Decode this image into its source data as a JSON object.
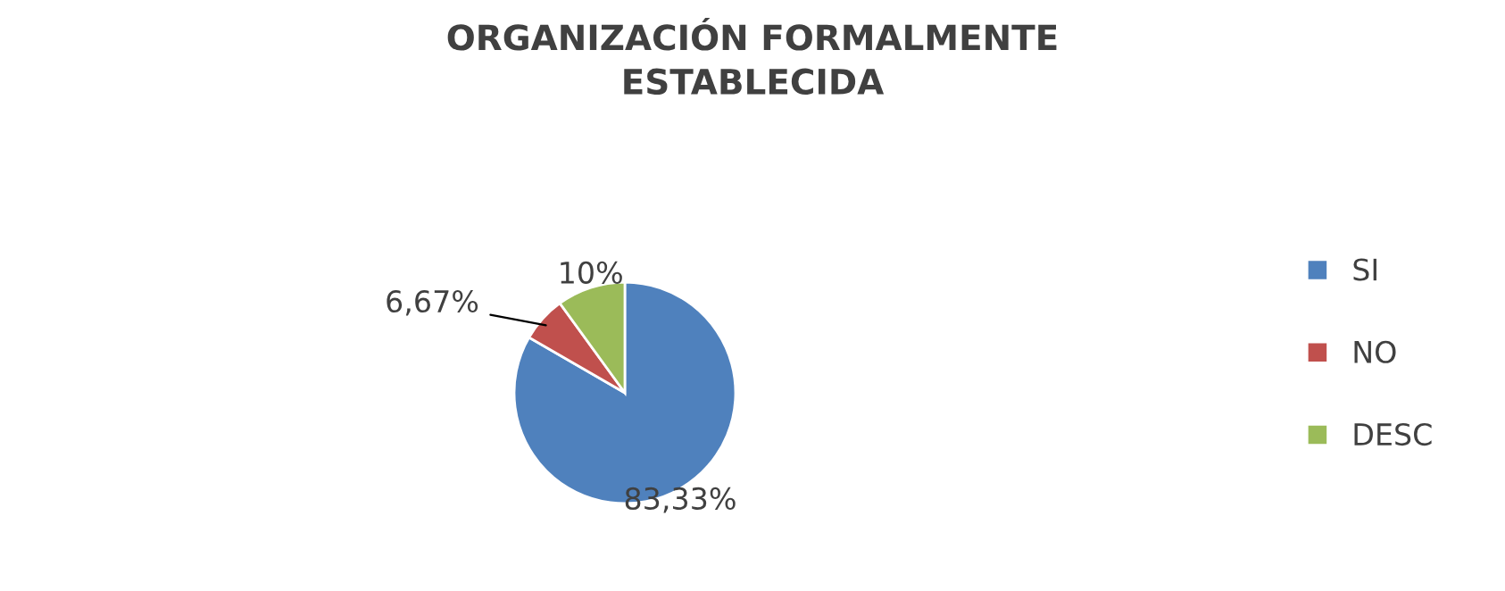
{
  "chart_data": {
    "type": "pie",
    "title": "ORGANIZACIÓN FORMALMENTE\nESTABLECIDA",
    "categories": [
      "SI",
      "NO",
      "DESC"
    ],
    "values": [
      83.33,
      6.67,
      10
    ],
    "colors": [
      "#4f81bd",
      "#c0504d",
      "#9bbb59"
    ],
    "value_labels": [
      "83,33%",
      "6,67%",
      "10%"
    ],
    "legend": "right"
  }
}
